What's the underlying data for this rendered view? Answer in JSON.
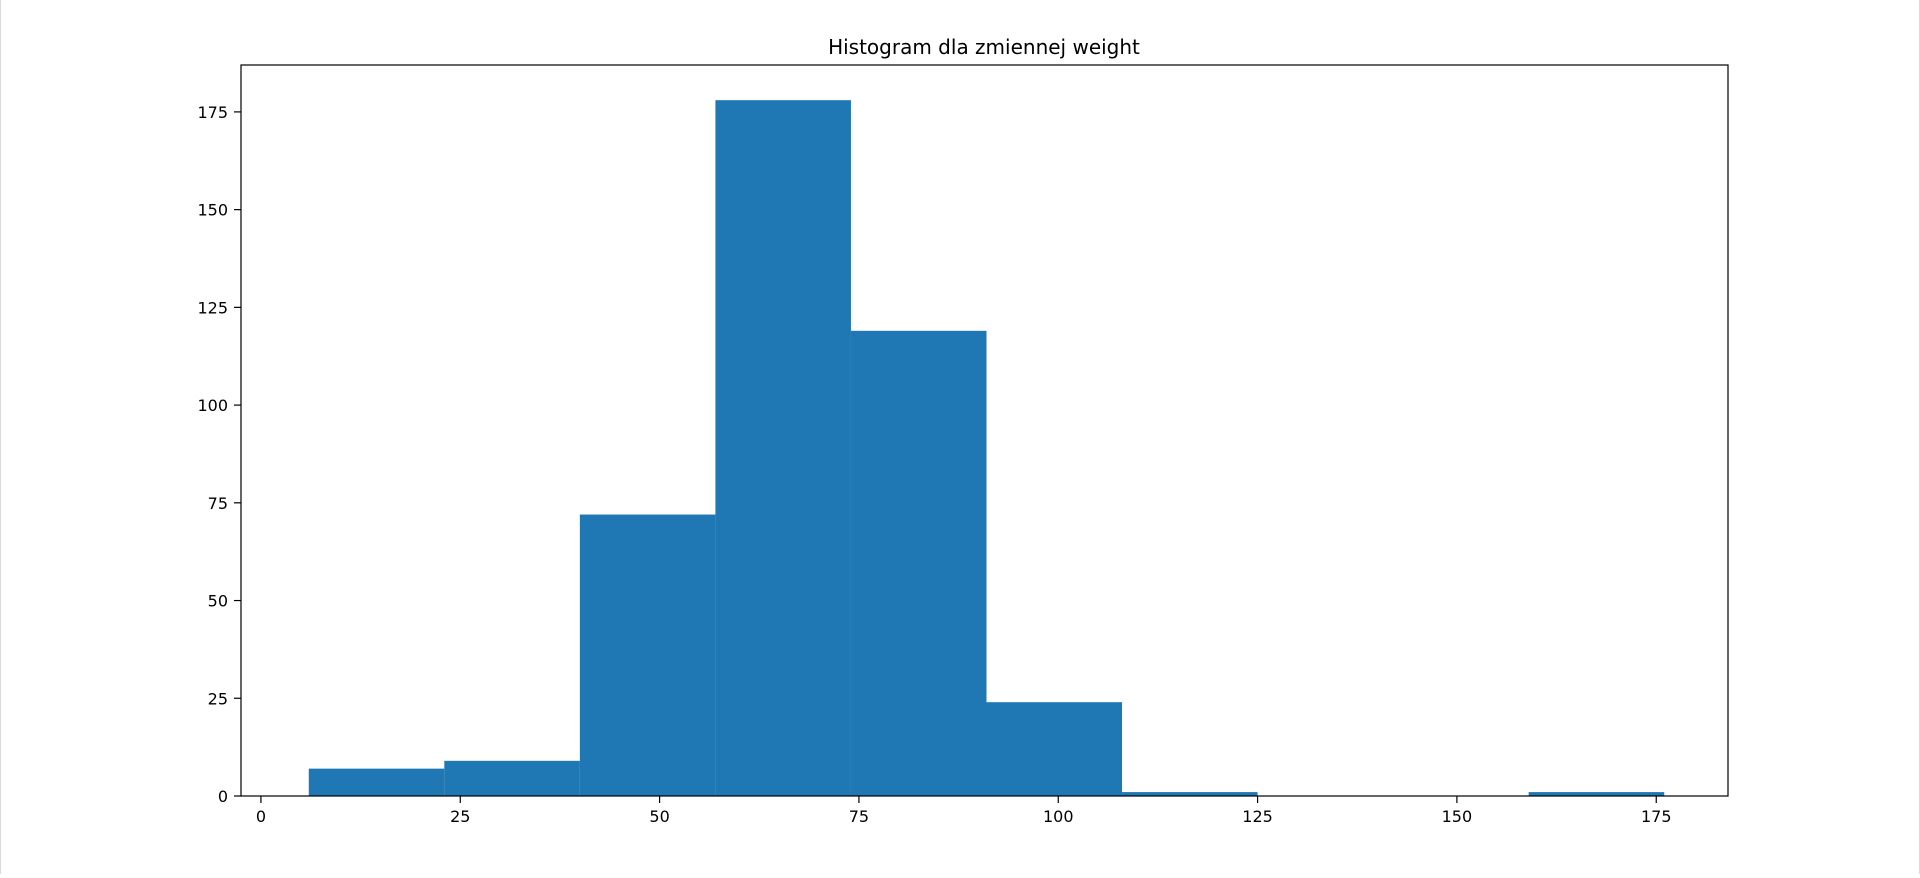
{
  "chart_data": {
    "type": "bar",
    "title": "Histogram dla zmiennej weight",
    "xlabel": "",
    "ylabel": "",
    "xlim": [
      -2.5,
      184
    ],
    "ylim": [
      0,
      187
    ],
    "x_ticks": [
      0,
      25,
      50,
      75,
      100,
      125,
      150,
      175
    ],
    "y_ticks": [
      0,
      25,
      50,
      75,
      100,
      125,
      150,
      175
    ],
    "bin_edges": [
      6,
      23,
      40,
      57,
      74,
      91,
      108,
      125,
      142,
      159,
      176
    ],
    "values": [
      7,
      9,
      72,
      178,
      119,
      24,
      1,
      0,
      0,
      1
    ],
    "grid": false,
    "legend": "none",
    "bar_color": "#1f77b4"
  }
}
